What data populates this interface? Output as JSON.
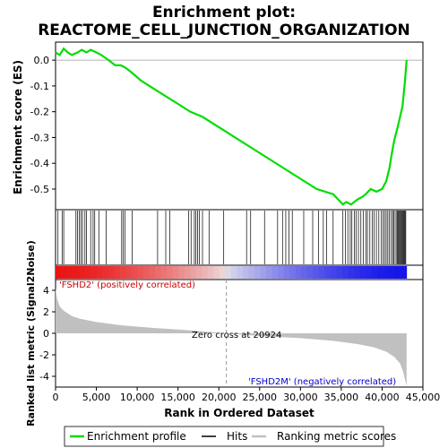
{
  "chart_data": {
    "type": "line",
    "title_line1": "Enrichment plot:",
    "title_line2": "REACTOME_CELL_JUNCTION_ORGANIZATION",
    "es_ylabel": "Enrichment score (ES)",
    "metric_ylabel": "Ranked list metric (Signal2Noise)",
    "xlabel": "Rank in Ordered Dataset",
    "xlim": [
      0,
      45000
    ],
    "es_ylim": [
      -0.58,
      0.07
    ],
    "metric_ylim": [
      -5.0,
      5.0
    ],
    "x_ticks": [
      0,
      5000,
      10000,
      15000,
      20000,
      25000,
      30000,
      35000,
      40000,
      45000
    ],
    "x_tick_labels": [
      "0",
      "5,000",
      "10,000",
      "15,000",
      "20,000",
      "25,000",
      "30,000",
      "35,000",
      "40,000",
      "45,000"
    ],
    "es_ticks": [
      0.0,
      -0.1,
      -0.2,
      -0.3,
      -0.4,
      -0.5
    ],
    "es_tick_labels": [
      "0.0",
      "-0.1",
      "-0.2",
      "-0.3",
      "-0.4",
      "-0.5"
    ],
    "metric_ticks": [
      4,
      2,
      0,
      -2,
      -4
    ],
    "metric_tick_labels": [
      "4",
      "2",
      "0",
      "-2",
      "-4"
    ],
    "n_genes": 43000,
    "zero_cross": 20924,
    "zero_cross_label": "Zero cross at 20924",
    "pos_label": "'FSHD2' (positively correlated)",
    "neg_label": "'FSHD2M' (negatively correlated)",
    "es_series": {
      "name": "Enrichment profile",
      "x": [
        0,
        500,
        1000,
        1500,
        2000,
        2700,
        3200,
        3800,
        4300,
        5000,
        5600,
        6500,
        7300,
        8000,
        8600,
        9400,
        10500,
        12000,
        13500,
        15000,
        16500,
        18000,
        20000,
        22000,
        24000,
        26000,
        28000,
        30000,
        32000,
        34000,
        35200,
        35600,
        36200,
        37000,
        37600,
        38000,
        38600,
        39300,
        40000,
        40500,
        40900,
        41200,
        41500,
        41900,
        42200,
        42500,
        42800,
        43000
      ],
      "y": [
        0.03,
        0.02,
        0.045,
        0.03,
        0.02,
        0.03,
        0.04,
        0.03,
        0.04,
        0.03,
        0.02,
        0.0,
        -0.02,
        -0.02,
        -0.03,
        -0.05,
        -0.08,
        -0.11,
        -0.14,
        -0.17,
        -0.2,
        -0.22,
        -0.26,
        -0.3,
        -0.34,
        -0.38,
        -0.42,
        -0.46,
        -0.5,
        -0.52,
        -0.56,
        -0.55,
        -0.56,
        -0.54,
        -0.53,
        -0.52,
        -0.5,
        -0.51,
        -0.5,
        -0.47,
        -0.42,
        -0.36,
        -0.31,
        -0.26,
        -0.22,
        -0.18,
        -0.08,
        0.0
      ]
    },
    "hits": [
      300,
      800,
      1000,
      2500,
      2700,
      2900,
      3100,
      3300,
      3600,
      3800,
      4300,
      4600,
      4800,
      5300,
      6200,
      8100,
      8300,
      8500,
      9400,
      12500,
      13500,
      14000,
      16300,
      16600,
      17000,
      17200,
      17400,
      17600,
      18000,
      18800,
      20600,
      23400,
      23900,
      25600,
      27200,
      27800,
      28200,
      28600,
      29000,
      30400,
      31500,
      32200,
      32800,
      33200,
      34000,
      35200,
      35500,
      35800,
      36100,
      36300,
      36600,
      36800,
      37100,
      37400,
      37700,
      38000,
      38200,
      38500,
      38800,
      39000,
      39300,
      39600,
      39900,
      40100,
      40300,
      40500,
      40700,
      40900,
      41100,
      41300,
      41400,
      41600,
      41800,
      41900,
      42000,
      42100,
      42200,
      42300,
      42400,
      42500,
      42600,
      42700,
      42800,
      42900
    ],
    "metric_series": {
      "name": "Ranking metric scores",
      "x": [
        0,
        200,
        500,
        1000,
        2000,
        3000,
        5000,
        8000,
        12000,
        16000,
        20924,
        25000,
        30000,
        34000,
        37000,
        39000,
        40500,
        41500,
        42200,
        42600,
        42900,
        43000
      ],
      "y": [
        4.2,
        3.2,
        2.5,
        2.1,
        1.6,
        1.35,
        1.05,
        0.75,
        0.5,
        0.3,
        0.0,
        -0.25,
        -0.45,
        -0.7,
        -1.0,
        -1.3,
        -1.7,
        -2.2,
        -2.8,
        -3.6,
        -4.6,
        -4.9
      ]
    },
    "legend": [
      {
        "label": "Enrichment profile",
        "color": "#00dd00"
      },
      {
        "label": "Hits",
        "color": "#000000"
      },
      {
        "label": "Ranking metric scores",
        "color": "#c0c0c0"
      }
    ],
    "colors": {
      "es_line": "#00dd00",
      "metric_fill": "#c0c0c0",
      "pos_text": "#cc0000",
      "neg_text": "#0000cc"
    }
  }
}
